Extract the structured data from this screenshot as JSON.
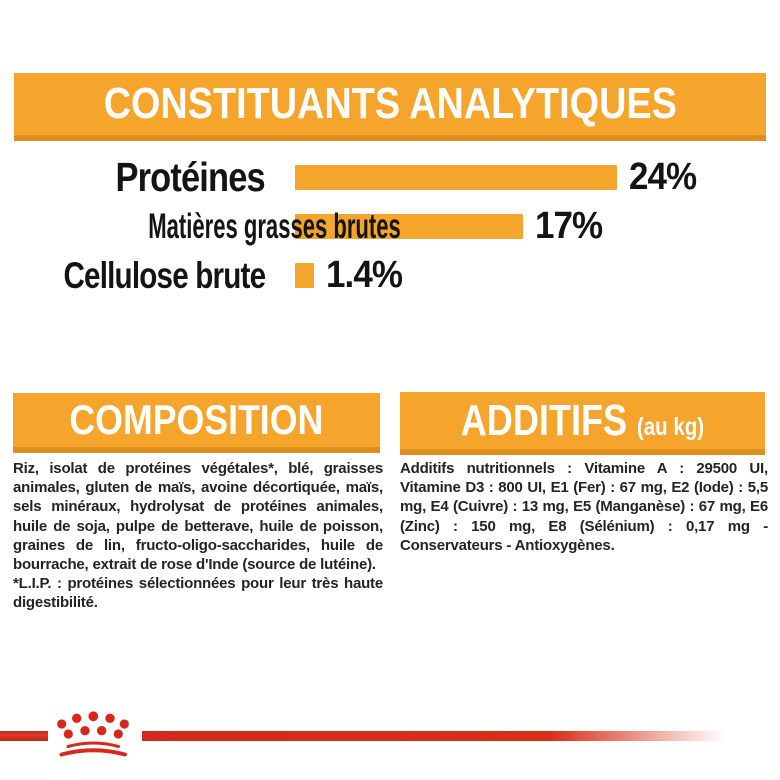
{
  "colors": {
    "orange": "#F5A42C",
    "orange_dark": "#DD8F1F",
    "red": "#D6291C",
    "text_dark": "#141414",
    "banner_text": "#FFFFFF"
  },
  "header": {
    "title": "CONSTITUANTS ANALYTIQUES"
  },
  "chart_data": {
    "type": "bar",
    "orientation": "horizontal",
    "title": "CONSTITUANTS ANALYTIQUES",
    "categories": [
      "Protéines",
      "Matières grasses brutes",
      "Cellulose brute"
    ],
    "values": [
      24,
      17,
      1.4
    ],
    "value_labels": [
      "24%",
      "17%",
      "1.4%"
    ],
    "unit": "%",
    "xlim": [
      0,
      25
    ],
    "bar_color": "#F5A42C",
    "grid": false,
    "legend": false
  },
  "composition": {
    "title": "COMPOSITION",
    "body": "Riz, isolat de protéines végétales*, blé, graisses animales, gluten de maïs, avoine décortiquée, maïs, sels minéraux, hydrolysat de protéines animales, huile de soja, pulpe de betterave, huile de poisson, graines de lin, fructo-oligo-saccharides, huile de bourrache, extrait de rose d'Inde (source de lutéine).",
    "footnote": "*L.I.P. : protéines sélectionnées pour leur très haute digestibilité."
  },
  "additifs": {
    "title": "ADDITIFS",
    "title_suffix": "(au kg)",
    "body": "Additifs nutritionnels : Vitamine A : 29500 UI, Vitamine D3 : 800 UI, E1 (Fer) : 67 mg, E2 (Iode) : 5,5 mg, E4 (Cuivre) : 13 mg, E5 (Manganèse) : 67 mg, E6 (Zinc) : 150 mg, E8 (Sélénium) : 0,17 mg - Conservateurs - Antioxygènes."
  },
  "footer": {
    "logo_icon": "royal-canin-crown-paw-logo"
  }
}
